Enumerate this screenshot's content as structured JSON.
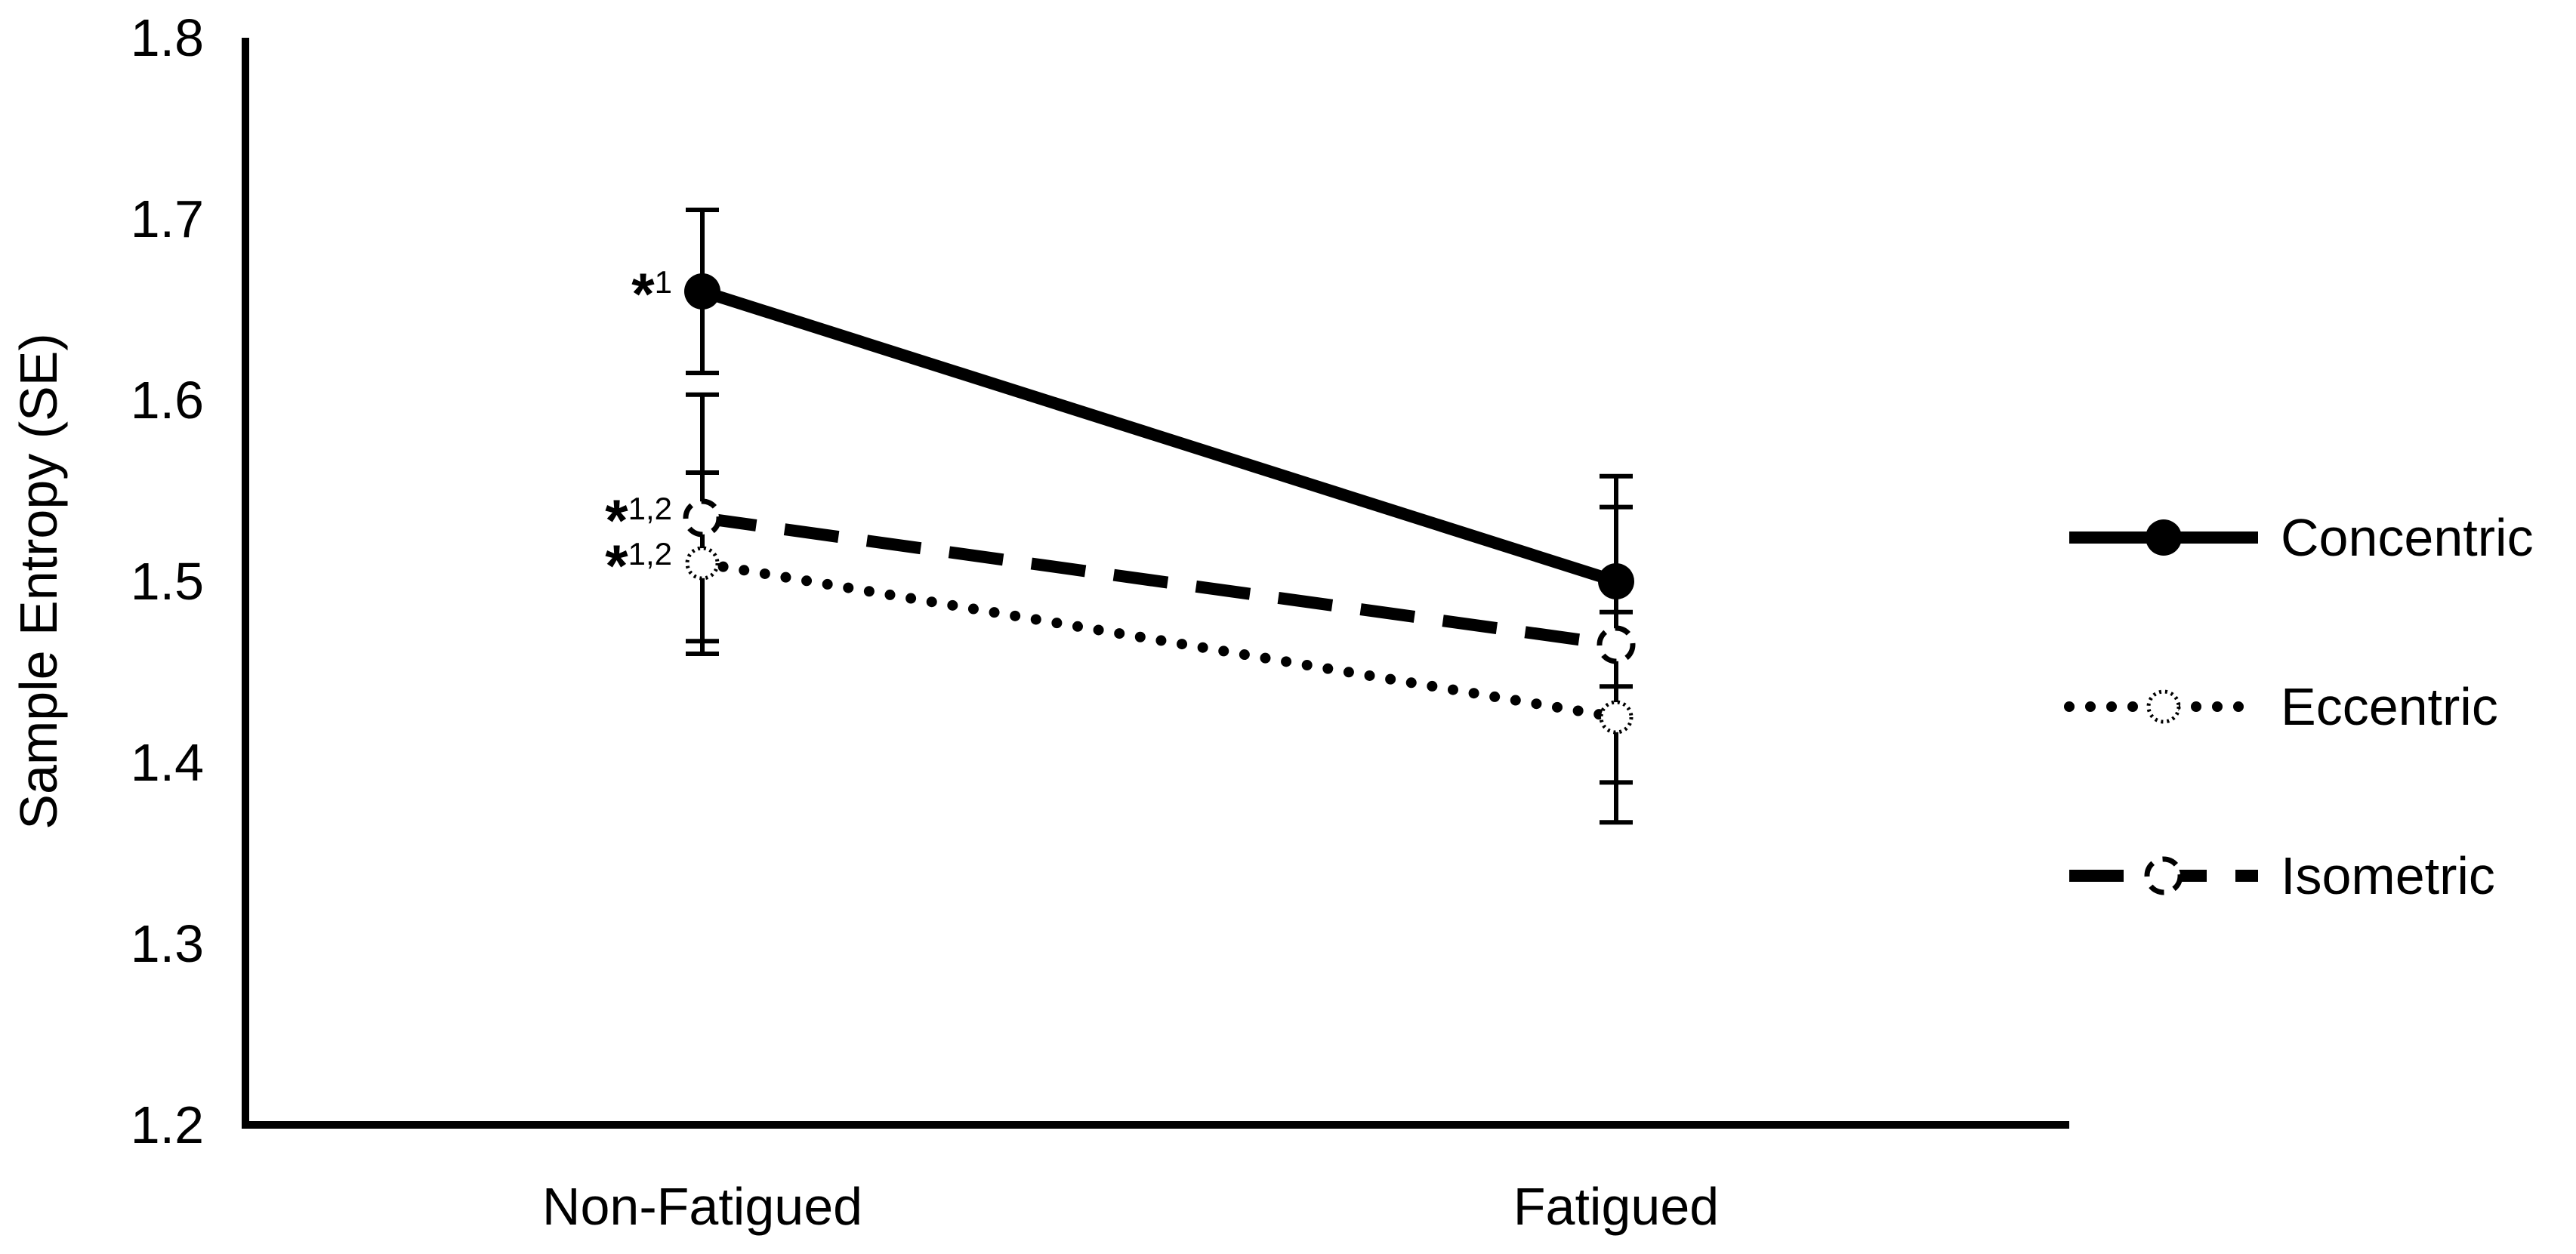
{
  "chart_data": {
    "type": "line",
    "title": "",
    "xlabel": "",
    "ylabel": "Sample Entropy (SE)",
    "ylim": [
      1.2,
      1.8
    ],
    "yticks": [
      "1.2",
      "1.3",
      "1.4",
      "1.5",
      "1.6",
      "1.7",
      "1.8"
    ],
    "categories": [
      "Non-Fatigued",
      "Fatigued"
    ],
    "grid": false,
    "legend_position": "right",
    "series": [
      {
        "name": "Concentric",
        "style": "solid",
        "marker": "filled-circle",
        "color": "#000000",
        "values": [
          1.66,
          1.5
        ],
        "error": [
          0.045,
          0.058
        ],
        "annotations": [
          {
            "star": "*",
            "sup": "1"
          },
          null
        ]
      },
      {
        "name": "Eccentric",
        "style": "dotted",
        "marker": "dotted-circle",
        "color": "#000000",
        "values": [
          1.51,
          1.425
        ],
        "error": [
          0.05,
          0.058
        ],
        "annotations": [
          {
            "star": "*",
            "sup": "1,2"
          },
          null
        ]
      },
      {
        "name": "Isometric",
        "style": "dashed",
        "marker": "dashed-circle",
        "color": "#000000",
        "values": [
          1.535,
          1.465
        ],
        "error": [
          0.068,
          0.076
        ],
        "annotations": [
          {
            "star": "*",
            "sup": "1,2"
          },
          null
        ]
      }
    ]
  }
}
